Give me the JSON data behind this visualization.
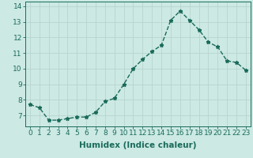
{
  "x": [
    0,
    1,
    2,
    3,
    4,
    5,
    6,
    7,
    8,
    9,
    10,
    11,
    12,
    13,
    14,
    15,
    16,
    17,
    18,
    19,
    20,
    21,
    22,
    23
  ],
  "y": [
    7.7,
    7.5,
    6.7,
    6.7,
    6.8,
    6.9,
    6.9,
    7.2,
    7.9,
    8.1,
    9.0,
    10.0,
    10.6,
    11.1,
    11.5,
    13.1,
    13.7,
    13.1,
    12.5,
    11.7,
    11.4,
    10.5,
    10.4,
    9.9
  ],
  "line_color": "#1a6b5a",
  "marker": "*",
  "marker_size": 3.5,
  "bg_color": "#cce9e4",
  "grid_color": "#b8d4cf",
  "xlabel": "Humidex (Indice chaleur)",
  "ylabel": "",
  "xlim": [
    -0.5,
    23.5
  ],
  "ylim": [
    6.3,
    14.3
  ],
  "yticks": [
    7,
    8,
    9,
    10,
    11,
    12,
    13,
    14
  ],
  "xticks": [
    0,
    1,
    2,
    3,
    4,
    5,
    6,
    7,
    8,
    9,
    10,
    11,
    12,
    13,
    14,
    15,
    16,
    17,
    18,
    19,
    20,
    21,
    22,
    23
  ],
  "tick_fontsize": 6.5,
  "xlabel_fontsize": 7.5,
  "line_width": 1.0
}
